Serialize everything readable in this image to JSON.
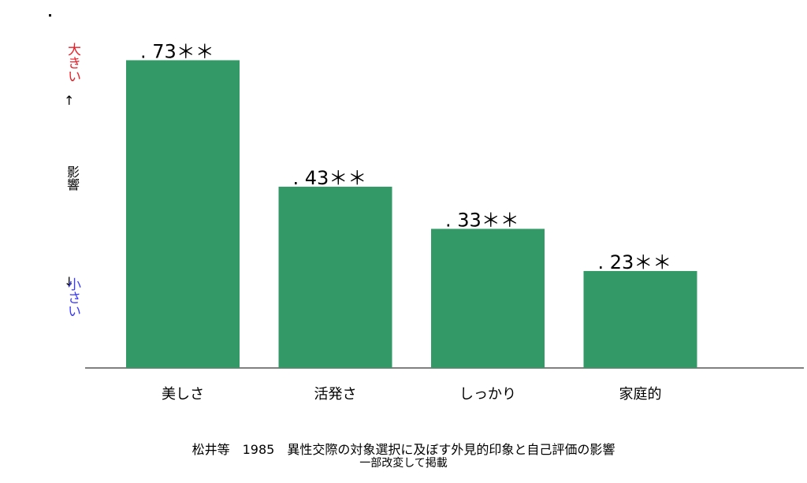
{
  "chart_data": {
    "type": "bar",
    "categories": [
      "美しさ",
      "活発さ",
      "しっかり",
      "家庭的"
    ],
    "values": [
      0.73,
      0.43,
      0.33,
      0.23
    ],
    "value_labels": [
      ". 73＊＊",
      ". 43＊＊",
      ". 33＊＊",
      ". 23＊＊"
    ],
    "ylim": [
      0,
      0.8
    ],
    "bar_color": "#339966",
    "axis_color": "#808080",
    "ylabel_top": "大きい",
    "ylabel_mid": "影響",
    "ylabel_bottom": "小さい",
    "ylabel_top_color": "#e8202a",
    "ylabel_bottom_color": "#3a3aff",
    "grid": false
  },
  "caption_line1": "松井等　1985　異性交際の対象選択に及ぼす外見的印象と自己評価の影響",
  "caption_line2": "一部改変して掲載"
}
